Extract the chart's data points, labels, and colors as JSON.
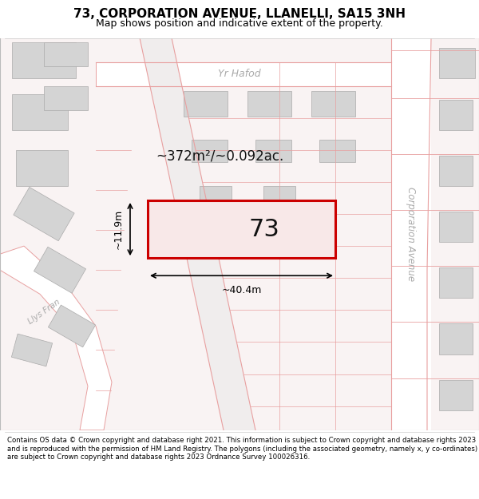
{
  "title": "73, CORPORATION AVENUE, LLANELLI, SA15 3NH",
  "subtitle": "Map shows position and indicative extent of the property.",
  "footer": "Contains OS data © Crown copyright and database right 2021. This information is subject to Crown copyright and database rights 2023 and is reproduced with the permission of HM Land Registry. The polygons (including the associated geometry, namely x, y co-ordinates) are subject to Crown copyright and database rights 2023 Ordnance Survey 100026316.",
  "bg_color": "#ffffff",
  "map_bg": "#f9f3f3",
  "road_fill": "#ffffff",
  "building_fill": "#d4d4d4",
  "building_edge": "#aaaaaa",
  "plot_outline": "#e8a0a0",
  "highlight_fill": "#f8e8e8",
  "highlight_outline": "#cc0000",
  "area_text": "~372m²/~0.092ac.",
  "label_73": "73",
  "dim_width": "~40.4m",
  "dim_height": "~11.9m",
  "street_yr_hafod": "Yr Hafod",
  "street_corp_ave": "Corporation Avenue",
  "street_llys_fran": "Llys Fran",
  "title_fontsize": 11,
  "subtitle_fontsize": 9,
  "footer_fontsize": 6.2,
  "label_color": "#333333",
  "street_color": "#aaaaaa",
  "dim_color": "#000000"
}
